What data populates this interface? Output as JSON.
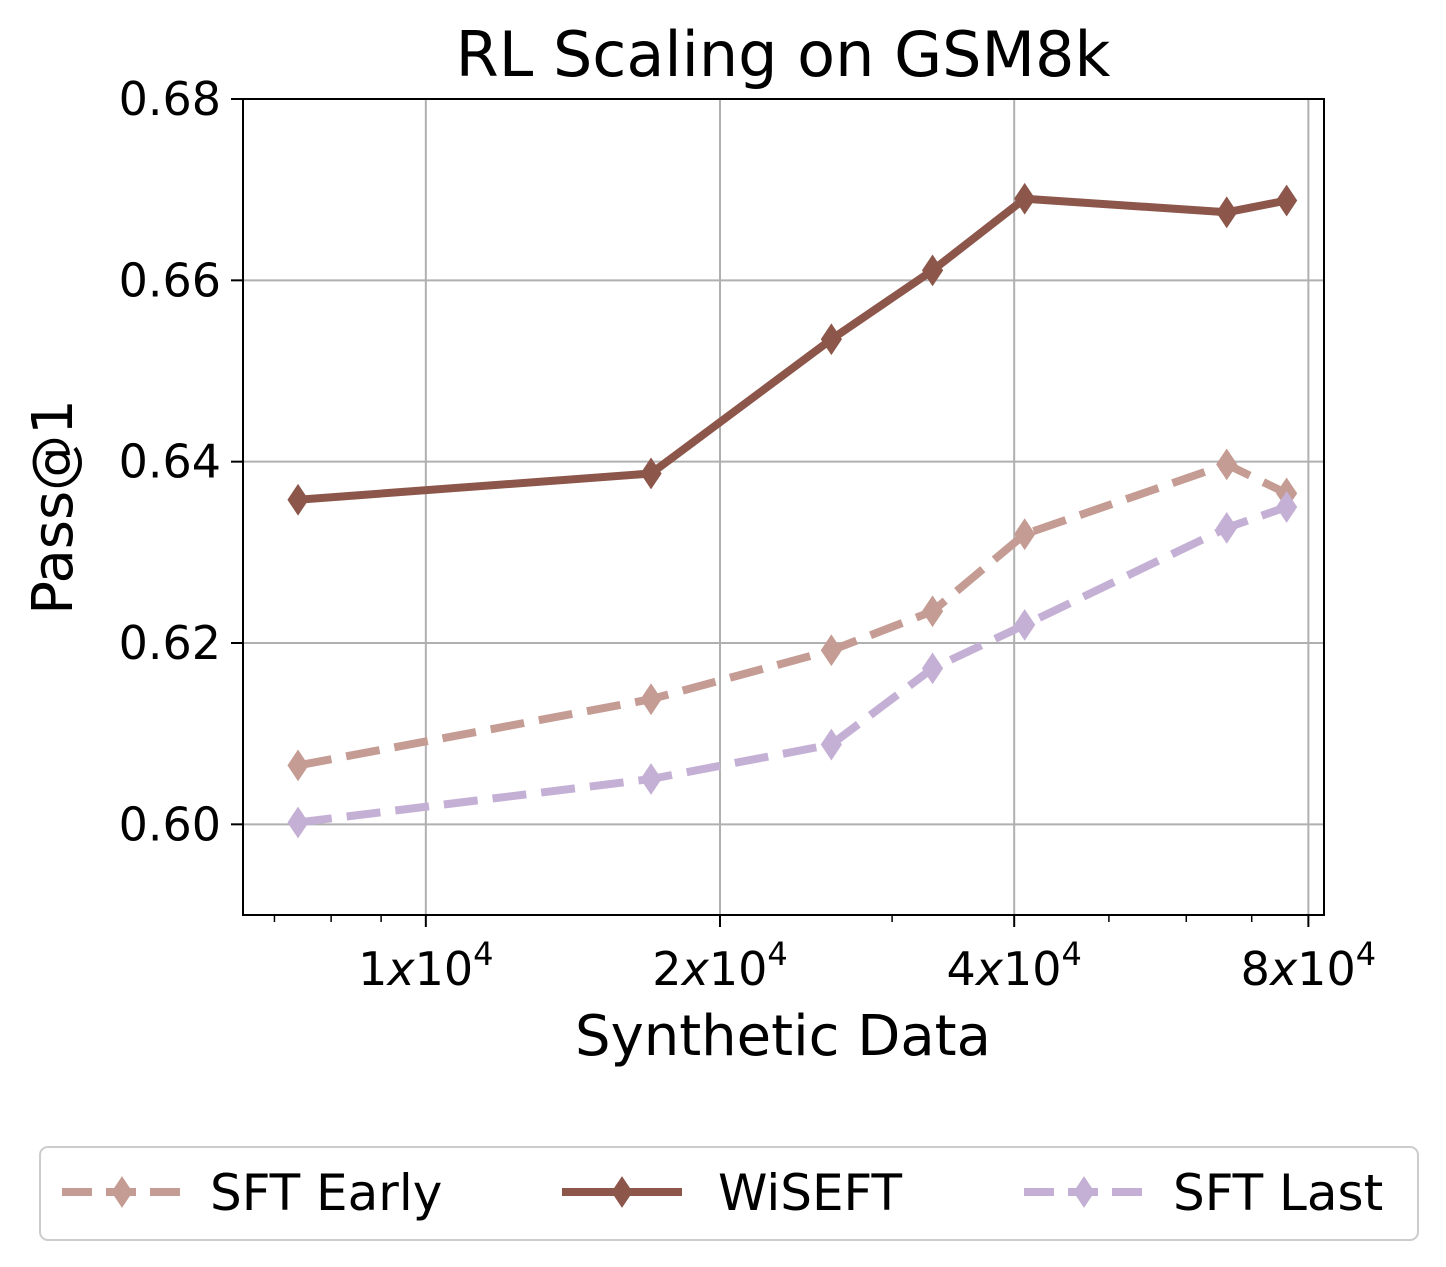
{
  "chart_data": {
    "type": "line",
    "title": "RL Scaling on GSM8k",
    "xlabel": "Synthetic Data",
    "ylabel": "Pass@1",
    "xscale": "log",
    "xlim": [
      6500,
      83000
    ],
    "ylim": [
      0.59,
      0.68
    ],
    "grid": true,
    "legend_position": "bottom",
    "yticks": [
      {
        "value": 0.6,
        "label": "0.60"
      },
      {
        "value": 0.62,
        "label": "0.62"
      },
      {
        "value": 0.64,
        "label": "0.64"
      },
      {
        "value": 0.66,
        "label": "0.66"
      },
      {
        "value": 0.68,
        "label": "0.68"
      }
    ],
    "xticks": [
      {
        "value": 10000,
        "mantissa": "1",
        "label": "1x10^4"
      },
      {
        "value": 20000,
        "mantissa": "2",
        "label": "2x10^4"
      },
      {
        "value": 40000,
        "mantissa": "4",
        "label": "4x10^4"
      },
      {
        "value": 80000,
        "mantissa": "8",
        "label": "8x10^4"
      }
    ],
    "x": [
      7400,
      17000,
      26000,
      33000,
      41000,
      66000,
      76000
    ],
    "series": [
      {
        "name": "SFT Early",
        "color": "#c49c94",
        "dashed": true,
        "values": [
          0.6065,
          0.6138,
          0.6192,
          0.6235,
          0.632,
          0.6397,
          0.6365
        ]
      },
      {
        "name": "WiSEFT",
        "color": "#8c564b",
        "dashed": false,
        "values": [
          0.6358,
          0.6387,
          0.6535,
          0.6611,
          0.669,
          0.6675,
          0.6688
        ]
      },
      {
        "name": "SFT Last",
        "color": "#c5b0d5",
        "dashed": true,
        "values": [
          0.6002,
          0.605,
          0.6088,
          0.6172,
          0.622,
          0.6327,
          0.635
        ]
      }
    ]
  }
}
